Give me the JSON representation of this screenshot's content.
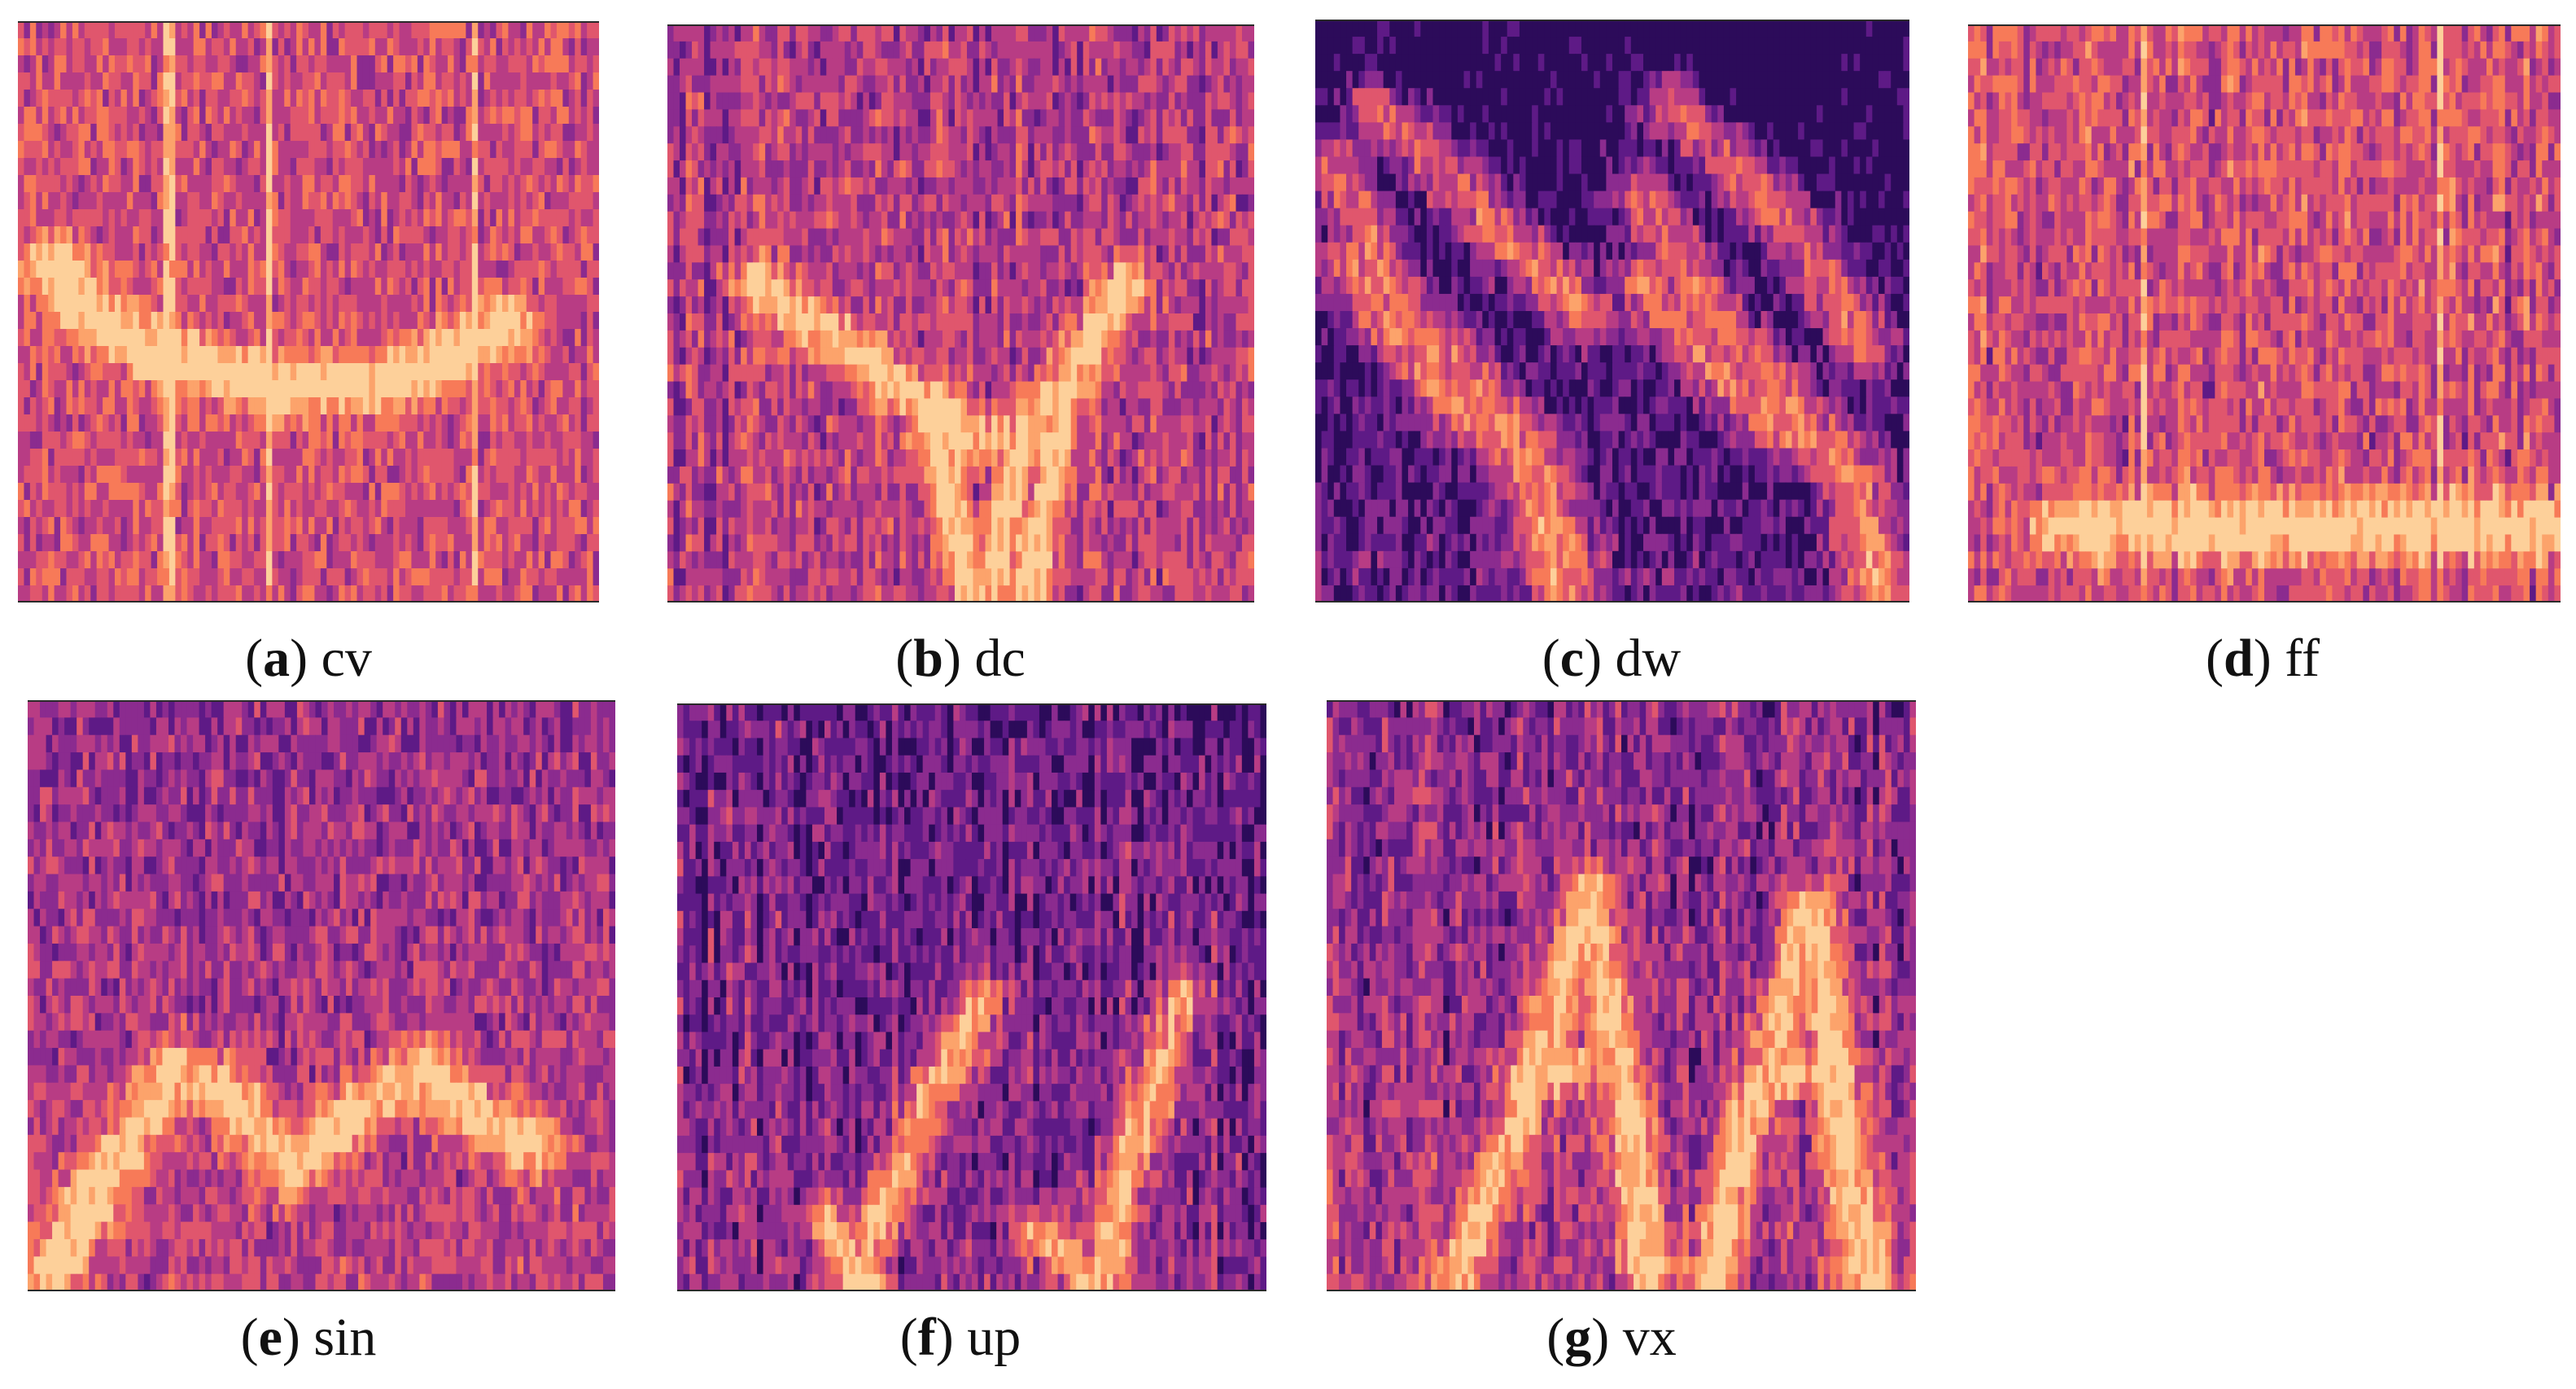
{
  "figure": {
    "palette": [
      "#2c0b5a",
      "#5e1a86",
      "#8b2b8f",
      "#b83c84",
      "#e0566d",
      "#f77a58",
      "#fca36b",
      "#fdd09a"
    ],
    "panels": [
      {
        "id": "cv",
        "letter": "a",
        "label": "cv",
        "colormap": "magma",
        "pattern": "curve-with-vertical-lines"
      },
      {
        "id": "dc",
        "letter": "b",
        "label": "dc",
        "colormap": "magma",
        "pattern": "descending-chirp-with-v"
      },
      {
        "id": "dw",
        "letter": "c",
        "label": "dw",
        "colormap": "magma",
        "pattern": "two-descending-harmonic-sweeps"
      },
      {
        "id": "ff",
        "letter": "d",
        "label": "ff",
        "colormap": "magma",
        "pattern": "flat-horizontal-band"
      },
      {
        "id": "sin",
        "letter": "e",
        "label": "sin",
        "colormap": "magma",
        "pattern": "sinusoidal-trace"
      },
      {
        "id": "up",
        "letter": "f",
        "label": "up",
        "colormap": "magma",
        "pattern": "two-ascending-sweeps"
      },
      {
        "id": "vx",
        "letter": "g",
        "label": "vx",
        "colormap": "magma",
        "pattern": "two-inverted-v-shapes"
      }
    ]
  }
}
